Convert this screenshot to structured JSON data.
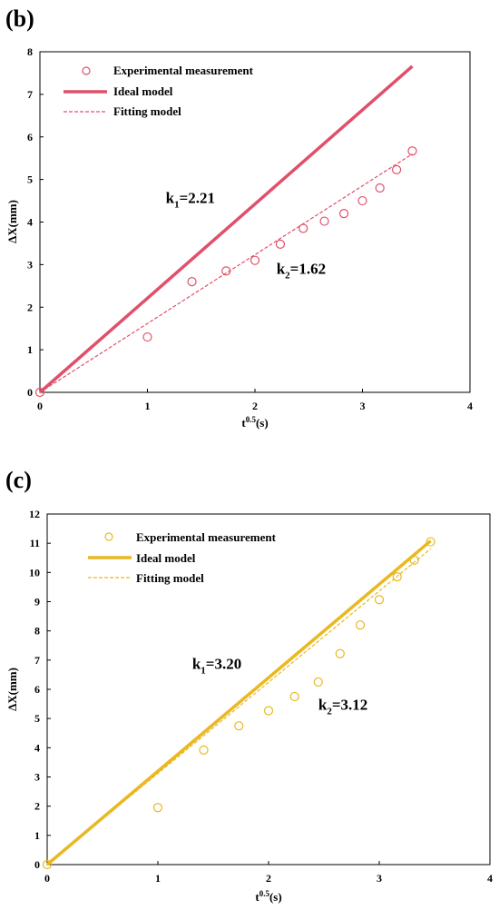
{
  "chart_data": [
    {
      "panel": "(b)",
      "type": "scatter",
      "xlabel_main": "t",
      "xlabel_sup": "0.5",
      "xlabel_unit": "(s)",
      "ylabel": "ΔX(mm)",
      "xlim": [
        0,
        4
      ],
      "ylim": [
        0,
        8
      ],
      "xticks": [
        "0",
        "1",
        "2",
        "3",
        "4"
      ],
      "yticks": [
        "0",
        "1",
        "2",
        "3",
        "4",
        "5",
        "6",
        "7",
        "8"
      ],
      "color": "#e0506a",
      "legend_placement": "top-left",
      "series": [
        {
          "name": "Experimental measurement",
          "kind": "scatter",
          "x": [
            0,
            1,
            1.414,
            1.732,
            2,
            2.236,
            2.449,
            2.646,
            2.828,
            3,
            3.162,
            3.317,
            3.464
          ],
          "y": [
            0,
            1.3,
            2.6,
            2.85,
            3.1,
            3.48,
            3.85,
            4.02,
            4.2,
            4.5,
            4.8,
            5.23,
            5.67
          ]
        },
        {
          "name": "Ideal model",
          "kind": "line",
          "style": "solid",
          "x": [
            0,
            3.464
          ],
          "y": [
            0,
            7.66
          ]
        },
        {
          "name": "Fitting model",
          "kind": "line",
          "style": "dashed",
          "x": [
            0,
            3.464
          ],
          "y": [
            0,
            5.6
          ]
        }
      ],
      "annotations": [
        {
          "main": "k",
          "sub": "1",
          "rest": "=2.21",
          "x": 1.17,
          "y": 4.45
        },
        {
          "main": "k",
          "sub": "2",
          "rest": "=1.62",
          "x": 2.2,
          "y": 2.78
        }
      ]
    },
    {
      "panel": "(c)",
      "type": "scatter",
      "xlabel_main": "t",
      "xlabel_sup": "0.5",
      "xlabel_unit": "(s)",
      "ylabel": "ΔX(mm)",
      "xlim": [
        0,
        4
      ],
      "ylim": [
        0,
        12
      ],
      "xticks": [
        "0",
        "1",
        "2",
        "3",
        "4"
      ],
      "yticks": [
        "0",
        "1",
        "2",
        "3",
        "4",
        "5",
        "6",
        "7",
        "8",
        "9",
        "10",
        "11",
        "12"
      ],
      "color": "#eab820",
      "legend_placement": "top-left",
      "series": [
        {
          "name": "Experimental measurement",
          "kind": "scatter",
          "x": [
            0,
            1,
            1.414,
            1.732,
            2,
            2.236,
            2.449,
            2.646,
            2.828,
            3,
            3.162,
            3.317,
            3.464
          ],
          "y": [
            0,
            1.95,
            3.92,
            4.75,
            5.27,
            5.75,
            6.25,
            7.22,
            8.2,
            9.07,
            9.85,
            10.42,
            11.05
          ]
        },
        {
          "name": "Ideal model",
          "kind": "line",
          "style": "solid",
          "x": [
            0,
            3.464
          ],
          "y": [
            0,
            11.08
          ]
        },
        {
          "name": "Fitting model",
          "kind": "line",
          "style": "dashed",
          "x": [
            0,
            3.464
          ],
          "y": [
            0,
            10.81
          ]
        }
      ],
      "annotations": [
        {
          "main": "k",
          "sub": "1",
          "rest": "=3.20",
          "x": 1.31,
          "y": 6.7
        },
        {
          "main": "k",
          "sub": "2",
          "rest": "=3.12",
          "x": 2.45,
          "y": 5.3
        }
      ]
    }
  ]
}
